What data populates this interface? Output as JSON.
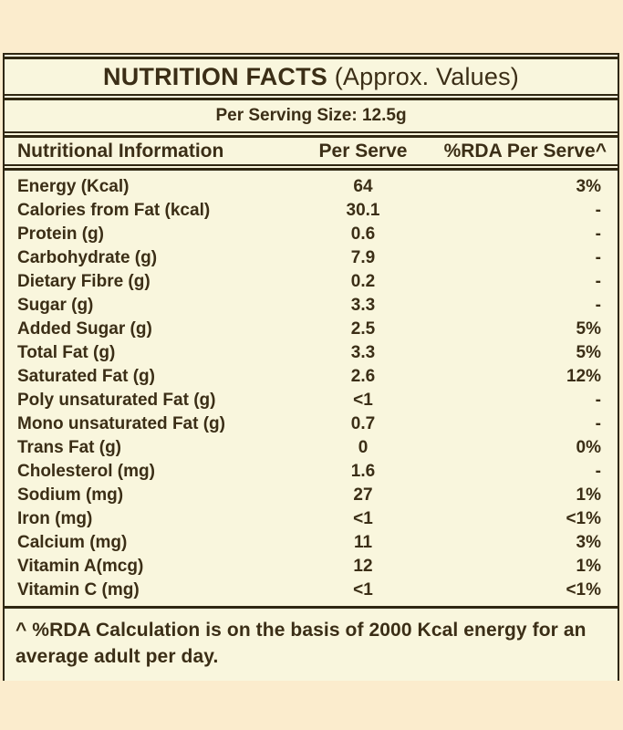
{
  "label": {
    "title_bold": "NUTRITION FACTS",
    "title_regular": " (Approx. Values)",
    "serving_line": "Per Serving Size: 12.5g",
    "header": {
      "nutrient": "Nutritional Information",
      "per_serve": "Per Serve",
      "rda": "%RDA Per Serve^"
    },
    "rows": [
      {
        "name": "Energy (Kcal)",
        "value": "64",
        "rda": "3%"
      },
      {
        "name": "Calories from Fat (kcal)",
        "value": "30.1",
        "rda": "-"
      },
      {
        "name": "Protein (g)",
        "value": "0.6",
        "rda": "-"
      },
      {
        "name": "Carbohydrate (g)",
        "value": "7.9",
        "rda": "-"
      },
      {
        "name": "Dietary Fibre (g)",
        "value": "0.2",
        "rda": "-"
      },
      {
        "name": "Sugar (g)",
        "value": "3.3",
        "rda": "-"
      },
      {
        "name": "Added Sugar (g)",
        "value": "2.5",
        "rda": "5%"
      },
      {
        "name": "Total Fat (g)",
        "value": "3.3",
        "rda": "5%"
      },
      {
        "name": "Saturated Fat (g)",
        "value": "2.6",
        "rda": "12%"
      },
      {
        "name": "Poly unsaturated Fat (g)",
        "value": "<1",
        "rda": "-"
      },
      {
        "name": "Mono unsaturated Fat (g)",
        "value": "0.7",
        "rda": "-"
      },
      {
        "name": "Trans Fat (g)",
        "value": "0",
        "rda": "0%"
      },
      {
        "name": "Cholesterol (mg)",
        "value": "1.6",
        "rda": "-"
      },
      {
        "name": "Sodium (mg)",
        "value": "27",
        "rda": "1%"
      },
      {
        "name": "Iron (mg)",
        "value": "<1",
        "rda": "<1%"
      },
      {
        "name": "Calcium (mg)",
        "value": "11",
        "rda": "3%"
      },
      {
        "name": "Vitamin A(mcg)",
        "value": "12",
        "rda": "1%"
      },
      {
        "name": "Vitamin C (mg)",
        "value": "<1",
        "rda": "<1%"
      }
    ],
    "footnote": "^ %RDA Calculation is on the basis of 2000 Kcal energy for an average adult per day.",
    "colors": {
      "outer_bg": "#fbeccd",
      "panel_bg": "#f9f6dd",
      "text": "#3b2e16",
      "rule": "#2f2712"
    }
  }
}
